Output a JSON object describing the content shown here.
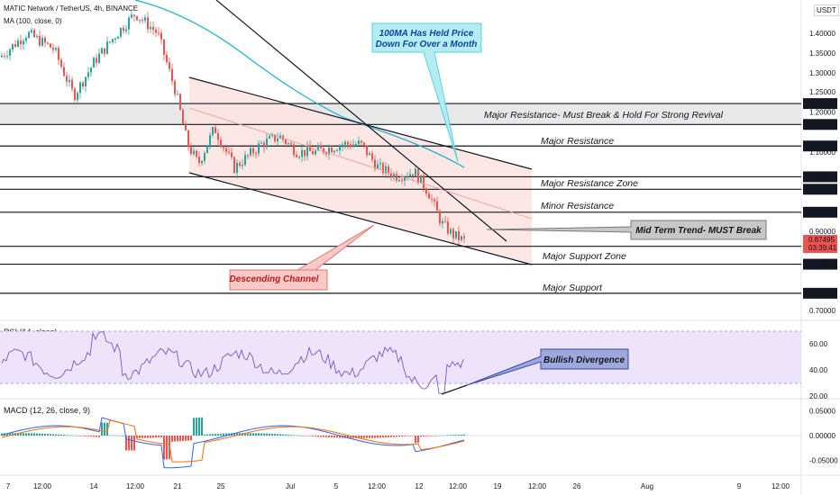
{
  "header": {
    "symbol_title": "MATIC Network / TetherUS, 4h, BINANCE",
    "indicator": "MA (100, close, 0)",
    "currency": "USDT"
  },
  "chart_data": [
    {
      "type": "line",
      "name": "price-panel",
      "y_ticks": [
        "1.40000",
        "1.35000",
        "1.30000",
        "1.25000",
        "1.20000",
        "1.10000",
        "0.90000",
        "0.70000"
      ],
      "ylim": [
        0.69,
        1.45
      ],
      "x_ticks": [
        "7",
        "12:00",
        "14",
        "12:00",
        "21",
        "25",
        "Jul",
        "5",
        "12:00",
        "12",
        "12:00",
        "19",
        "12:00",
        "26",
        "Aug",
        "9",
        "12:00"
      ],
      "price_levels": [
        {
          "label": "1.22071",
          "value": 1.22071
        },
        {
          "label": "1.16875",
          "value": 1.16875
        },
        {
          "label": "1.11516",
          "value": 1.11516
        },
        {
          "label": "1.03767",
          "value": 1.03767
        },
        {
          "label": "1.00615",
          "value": 1.00615
        },
        {
          "label": "0.94817",
          "value": 0.94817
        },
        {
          "label": "0.86208",
          "value": 0.86208
        },
        {
          "label": "0.81688",
          "value": 0.81688
        },
        {
          "label": "0.74354",
          "value": 0.74354
        }
      ],
      "last_price": "0.87495",
      "countdown": "03:39:41",
      "zone_labels": [
        "Major Resistance- Must Break & Hold For Strong Revival",
        "Major Resistance",
        "Major Resistance Zone",
        "Minor Resistance",
        "Major Support Zone",
        "Major Support"
      ],
      "callouts": {
        "ma_note": "100MA Has Held Price Down For Over a Month",
        "trend_note": "Mid Term Trend- MUST Break",
        "channel_note": "Descending Channel"
      },
      "colors": {
        "up": "#26a69a",
        "down": "#ef5350",
        "ma": "#22b5cc",
        "channel_fill": "#fbe3e1",
        "resistance_band": "#e6e6e6"
      }
    },
    {
      "type": "line",
      "name": "rsi-panel",
      "title": "RSI (14, close)",
      "y_ticks": [
        "60.00",
        "40.00",
        "20.00"
      ],
      "callout": "Bullish Divergence",
      "colors": {
        "line": "#7e57c2",
        "band": "#ede3fb"
      }
    },
    {
      "type": "bar",
      "name": "macd-panel",
      "title": "MACD (12, 26, close, 9)",
      "y_ticks": [
        "0.05000",
        "0.00000",
        "-0.05000"
      ],
      "colors": {
        "macd": "#2962ff",
        "signal": "#ff6d00",
        "hist_up": "#26a69a",
        "hist_down": "#ef5350"
      }
    }
  ]
}
